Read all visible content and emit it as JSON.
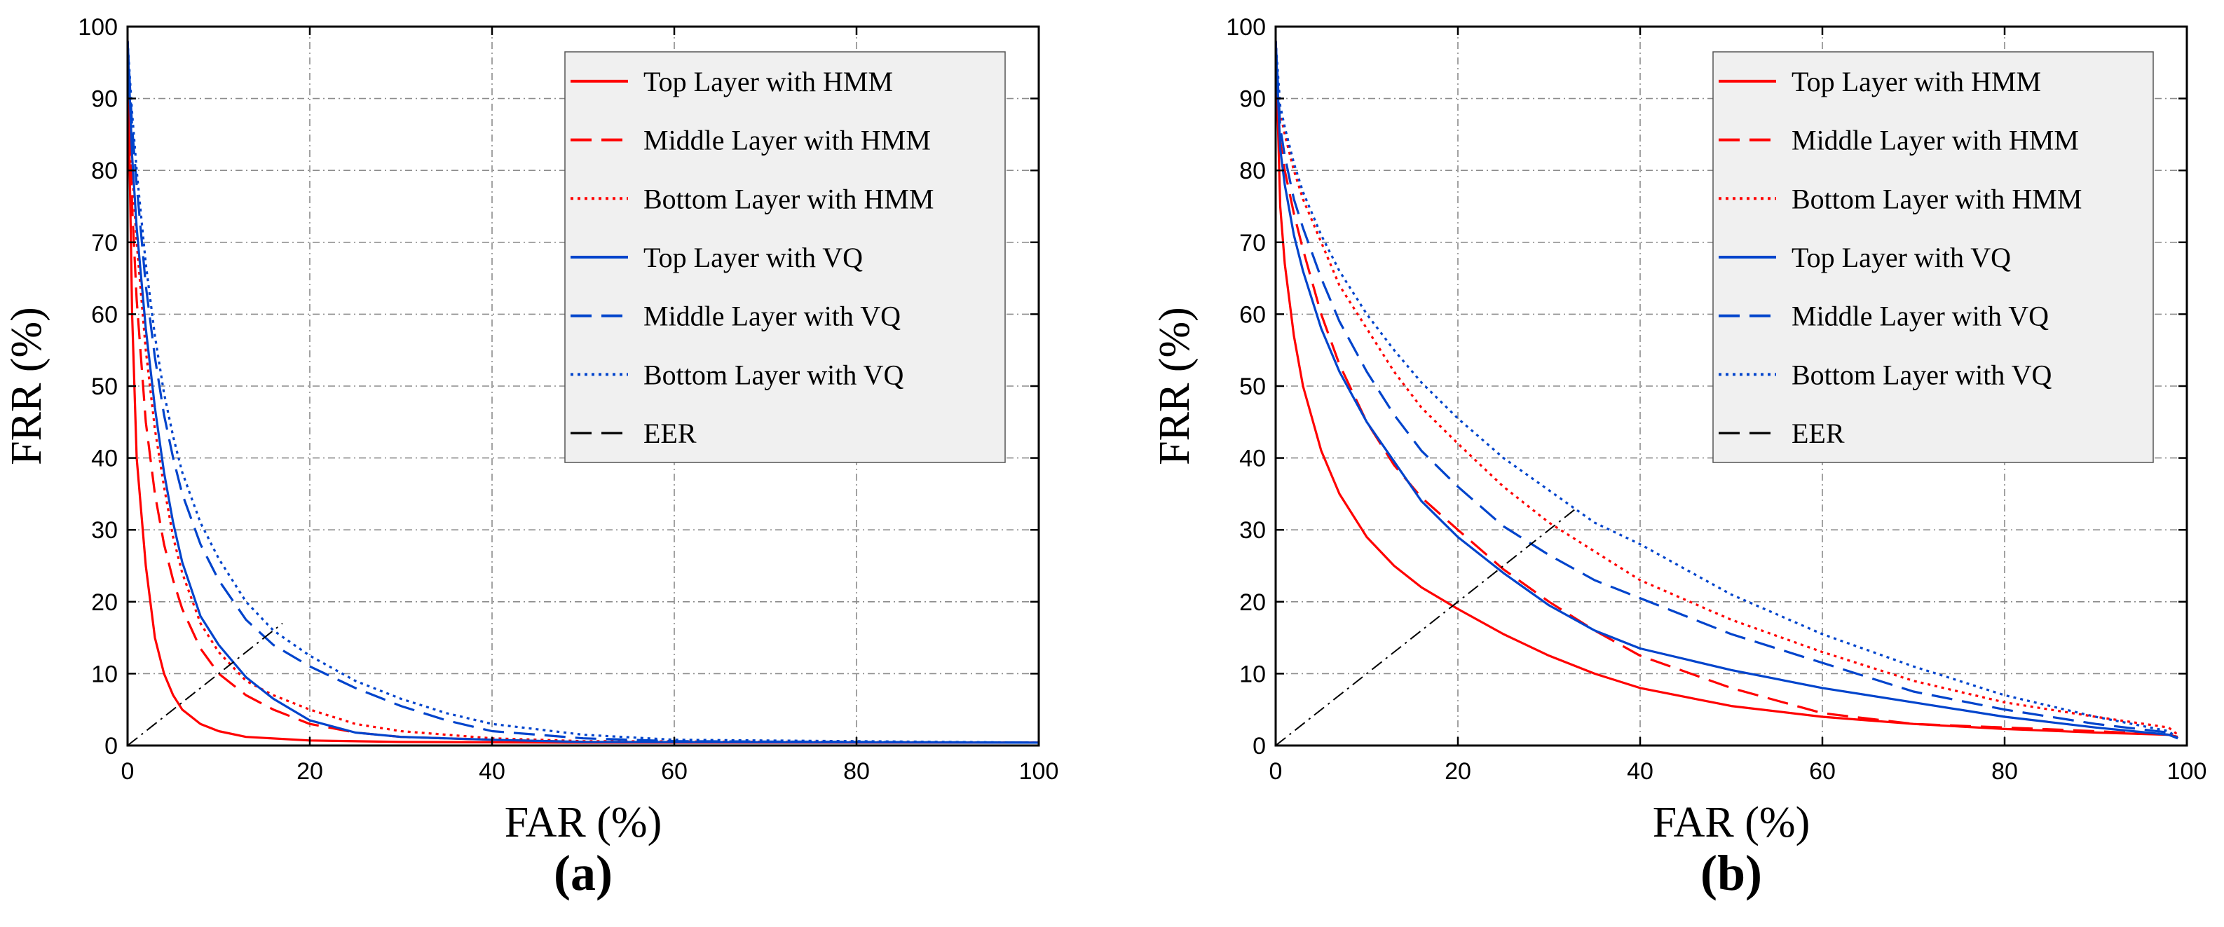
{
  "chart_data": [
    {
      "type": "line",
      "panel_label": "(a)",
      "xlabel": "FAR (%)",
      "ylabel": "FRR (%)",
      "xlim": [
        0,
        100
      ],
      "ylim": [
        0,
        100
      ],
      "xticks": [
        "0",
        "20",
        "40",
        "60",
        "80",
        "100"
      ],
      "yticks": [
        "0",
        "10",
        "20",
        "30",
        "40",
        "50",
        "60",
        "70",
        "80",
        "90",
        "100"
      ],
      "grid": true,
      "legend_position": "top-right",
      "series": [
        {
          "name": "Top  Layer with HMM",
          "color": "#ff0000",
          "style": "solid",
          "x": [
            0,
            0.5,
            1,
            2,
            3,
            4,
            5,
            6,
            8,
            10,
            13,
            20,
            30,
            50,
            100
          ],
          "y": [
            98,
            60,
            40,
            25,
            15,
            10,
            7,
            5,
            3,
            2,
            1.2,
            0.7,
            0.5,
            0.4,
            0.4
          ]
        },
        {
          "name": "Middle Layer with HMM",
          "color": "#ff0000",
          "style": "dashed",
          "x": [
            0,
            0.5,
            1,
            2,
            3,
            4,
            5,
            6,
            8,
            10,
            13,
            16,
            20,
            25,
            30,
            40,
            50,
            100
          ],
          "y": [
            98,
            75,
            62,
            45,
            35,
            28,
            23,
            19,
            13.5,
            10,
            7,
            5,
            3,
            1.8,
            1.2,
            0.8,
            0.5,
            0.4
          ]
        },
        {
          "name": "Bottom Layer with HMM",
          "color": "#ff0000",
          "style": "dotted",
          "x": [
            0,
            0.5,
            1,
            2,
            3,
            4,
            5,
            6,
            8,
            10,
            13,
            16,
            20,
            25,
            30,
            40,
            50,
            100
          ],
          "y": [
            98,
            80,
            70,
            55,
            44,
            36,
            29,
            24,
            17,
            13,
            9,
            7,
            5,
            3,
            2,
            1,
            0.6,
            0.4
          ]
        },
        {
          "name": "Top  Layer with VQ",
          "color": "#0044cc",
          "style": "solid",
          "x": [
            0,
            0.5,
            1,
            2,
            3,
            4,
            5,
            6,
            8,
            10,
            13,
            16,
            20,
            25,
            30,
            40,
            50,
            100
          ],
          "y": [
            98,
            82,
            72,
            58,
            47,
            38,
            31,
            25.5,
            18,
            14,
            9.5,
            6.5,
            3.5,
            1.8,
            1.2,
            0.8,
            0.5,
            0.4
          ]
        },
        {
          "name": "Middle Layer with VQ",
          "color": "#0044cc",
          "style": "dashed",
          "x": [
            0,
            0.5,
            1,
            2,
            3,
            4,
            5,
            6,
            8,
            10,
            13,
            16,
            20,
            25,
            30,
            35,
            40,
            50,
            60,
            100
          ],
          "y": [
            98,
            86,
            78,
            64,
            54,
            46,
            40,
            35,
            28,
            23,
            17.5,
            14,
            11,
            8,
            5.5,
            3.5,
            2,
            1,
            0.6,
            0.4
          ]
        },
        {
          "name": "Bottom Layer with VQ",
          "color": "#0044cc",
          "style": "dotted",
          "x": [
            0,
            0.5,
            1,
            2,
            3,
            4,
            5,
            6,
            8,
            10,
            13,
            16,
            20,
            25,
            30,
            35,
            40,
            50,
            60,
            100
          ],
          "y": [
            98,
            88,
            80,
            67,
            57,
            49,
            43,
            38,
            31,
            26,
            20,
            16,
            12.5,
            9,
            6.5,
            4.5,
            3,
            1.5,
            0.8,
            0.4
          ]
        },
        {
          "name": "EER",
          "color": "#000000",
          "style": "dashdot",
          "x": [
            0,
            17
          ],
          "y": [
            0,
            17
          ]
        }
      ]
    },
    {
      "type": "line",
      "panel_label": "(b)",
      "xlabel": "FAR (%)",
      "ylabel": "FRR (%)",
      "xlim": [
        0,
        100
      ],
      "ylim": [
        0,
        100
      ],
      "xticks": [
        "0",
        "20",
        "40",
        "60",
        "80",
        "100"
      ],
      "yticks": [
        "0",
        "10",
        "20",
        "30",
        "40",
        "50",
        "60",
        "70",
        "80",
        "90",
        "100"
      ],
      "grid": true,
      "legend_position": "top-right",
      "series": [
        {
          "name": "Top  Layer with HMM",
          "color": "#ff0000",
          "style": "solid",
          "x": [
            0,
            0.5,
            1,
            2,
            3,
            5,
            7,
            10,
            13,
            16,
            20,
            25,
            30,
            35,
            40,
            50,
            60,
            70,
            80,
            90,
            98,
            99
          ],
          "y": [
            98,
            75,
            67,
            57,
            50,
            41,
            35,
            29,
            25,
            22,
            19,
            15.5,
            12.5,
            10,
            8,
            5.5,
            4,
            3,
            2.3,
            1.8,
            1.5,
            1.2
          ]
        },
        {
          "name": "Middle Layer with HMM",
          "color": "#ff0000",
          "style": "dashed",
          "x": [
            0,
            0.5,
            1,
            2,
            3,
            5,
            7,
            10,
            13,
            16,
            20,
            25,
            30,
            35,
            40,
            50,
            60,
            70,
            80,
            90,
            98,
            99
          ],
          "y": [
            98,
            84,
            80,
            74,
            69,
            60,
            53,
            45,
            39,
            34.5,
            30,
            24.5,
            20,
            16,
            12.5,
            8,
            4.5,
            3,
            2.5,
            2,
            1.5,
            1.2
          ]
        },
        {
          "name": "Bottom Layer with HMM",
          "color": "#ff0000",
          "style": "dotted",
          "x": [
            0,
            0.5,
            1,
            2,
            3,
            5,
            7,
            10,
            13,
            16,
            20,
            25,
            30,
            35,
            40,
            50,
            60,
            70,
            80,
            90,
            98,
            99
          ],
          "y": [
            98,
            88,
            85,
            80,
            76,
            70,
            64,
            58,
            52,
            47,
            42,
            36,
            31,
            27,
            23,
            17.5,
            13,
            9,
            6,
            4,
            2.5,
            1.5
          ]
        },
        {
          "name": "Top  Layer with VQ",
          "color": "#0044cc",
          "style": "solid",
          "x": [
            0,
            0.5,
            1,
            2,
            3,
            5,
            7,
            10,
            13,
            16,
            20,
            25,
            30,
            35,
            40,
            50,
            60,
            70,
            80,
            90,
            98,
            99
          ],
          "y": [
            98,
            83,
            78,
            71,
            66,
            58,
            52,
            45,
            39.5,
            34,
            29,
            24,
            19.5,
            16,
            13.5,
            10.5,
            8,
            6,
            4,
            2.5,
            1.5,
            1
          ]
        },
        {
          "name": "Middle Layer with VQ",
          "color": "#0044cc",
          "style": "dashed",
          "x": [
            0,
            0.5,
            1,
            2,
            3,
            5,
            7,
            10,
            13,
            16,
            20,
            25,
            30,
            35,
            40,
            50,
            60,
            70,
            80,
            90,
            98,
            99
          ],
          "y": [
            98,
            86,
            82,
            76,
            72,
            65,
            59,
            52,
            46,
            41,
            36,
            30.5,
            26.5,
            23,
            20.5,
            15.5,
            11.5,
            7.5,
            5,
            3,
            1.8,
            1
          ]
        },
        {
          "name": "Bottom Layer with VQ",
          "color": "#0044cc",
          "style": "dotted",
          "x": [
            0,
            0.5,
            1,
            2,
            3,
            5,
            7,
            10,
            13,
            16,
            20,
            25,
            30,
            35,
            40,
            50,
            60,
            70,
            80,
            90,
            98,
            99
          ],
          "y": [
            98,
            89,
            86,
            81,
            77,
            71,
            66,
            60,
            55,
            50.5,
            45.5,
            40,
            35.5,
            31,
            28,
            21,
            15.5,
            11,
            7,
            4,
            2,
            1
          ]
        },
        {
          "name": "EER",
          "color": "#000000",
          "style": "dashdot",
          "x": [
            0,
            33
          ],
          "y": [
            0,
            33
          ]
        }
      ]
    }
  ]
}
